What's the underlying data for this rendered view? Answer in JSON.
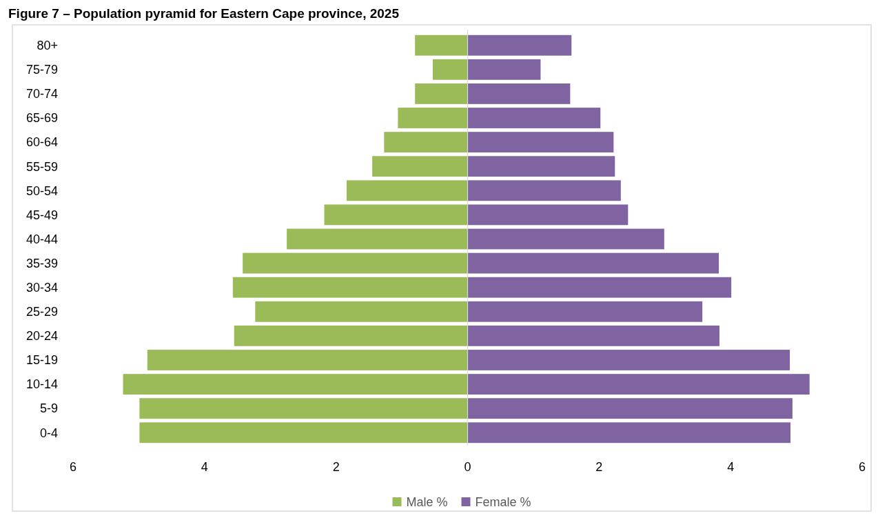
{
  "chart_data": {
    "type": "bar",
    "orientation": "horizontal",
    "stacked": true,
    "title": "Figure 7 – Population pyramid for Eastern Cape province, 2025",
    "categories": [
      "80+",
      "75-79",
      "70-74",
      "65-69",
      "60-64",
      "55-59",
      "50-54",
      "45-49",
      "40-44",
      "35-39",
      "30-34",
      "25-29",
      "20-24",
      "15-19",
      "10-14",
      "5-9",
      "0-4"
    ],
    "series": [
      {
        "name": "Male %",
        "color": "#9bbb59",
        "values": [
          -0.8,
          -0.53,
          -0.8,
          -1.06,
          -1.27,
          -1.45,
          -1.84,
          -2.18,
          -2.75,
          -3.42,
          -3.57,
          -3.23,
          -3.55,
          -4.87,
          -5.24,
          -4.99,
          -4.99
        ]
      },
      {
        "name": "Female %",
        "color": "#8064a2",
        "values": [
          1.58,
          1.11,
          1.56,
          2.02,
          2.22,
          2.24,
          2.33,
          2.44,
          2.99,
          3.82,
          4.01,
          3.57,
          3.83,
          4.9,
          5.2,
          4.94,
          4.91
        ]
      }
    ],
    "xlim": [
      -6,
      6
    ],
    "xticks": [
      {
        "value": -6,
        "label": "6"
      },
      {
        "value": -4,
        "label": "4"
      },
      {
        "value": -2,
        "label": "2"
      },
      0,
      2,
      4,
      6
    ],
    "legend": "bottom"
  }
}
